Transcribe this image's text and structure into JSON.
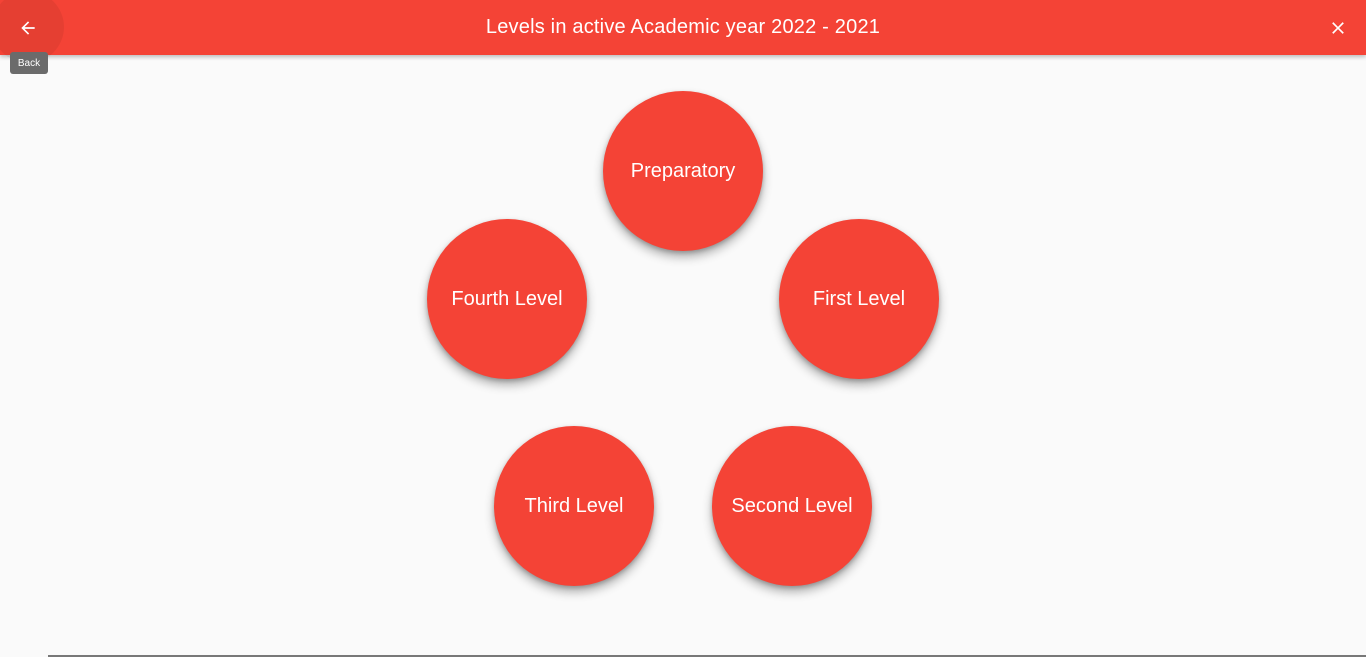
{
  "colors": {
    "accent": "#f44336",
    "background": "#fafafa",
    "tooltip": "#6b6b6b"
  },
  "header": {
    "title": "Levels in active Academic year 2022 - 2021",
    "back_icon": "arrow-left-icon",
    "close_icon": "close-icon",
    "back_tooltip": "Back"
  },
  "levels": [
    {
      "label": "Preparatory"
    },
    {
      "label": "Fourth Level"
    },
    {
      "label": "First Level"
    },
    {
      "label": "Third Level"
    },
    {
      "label": "Second Level"
    }
  ]
}
